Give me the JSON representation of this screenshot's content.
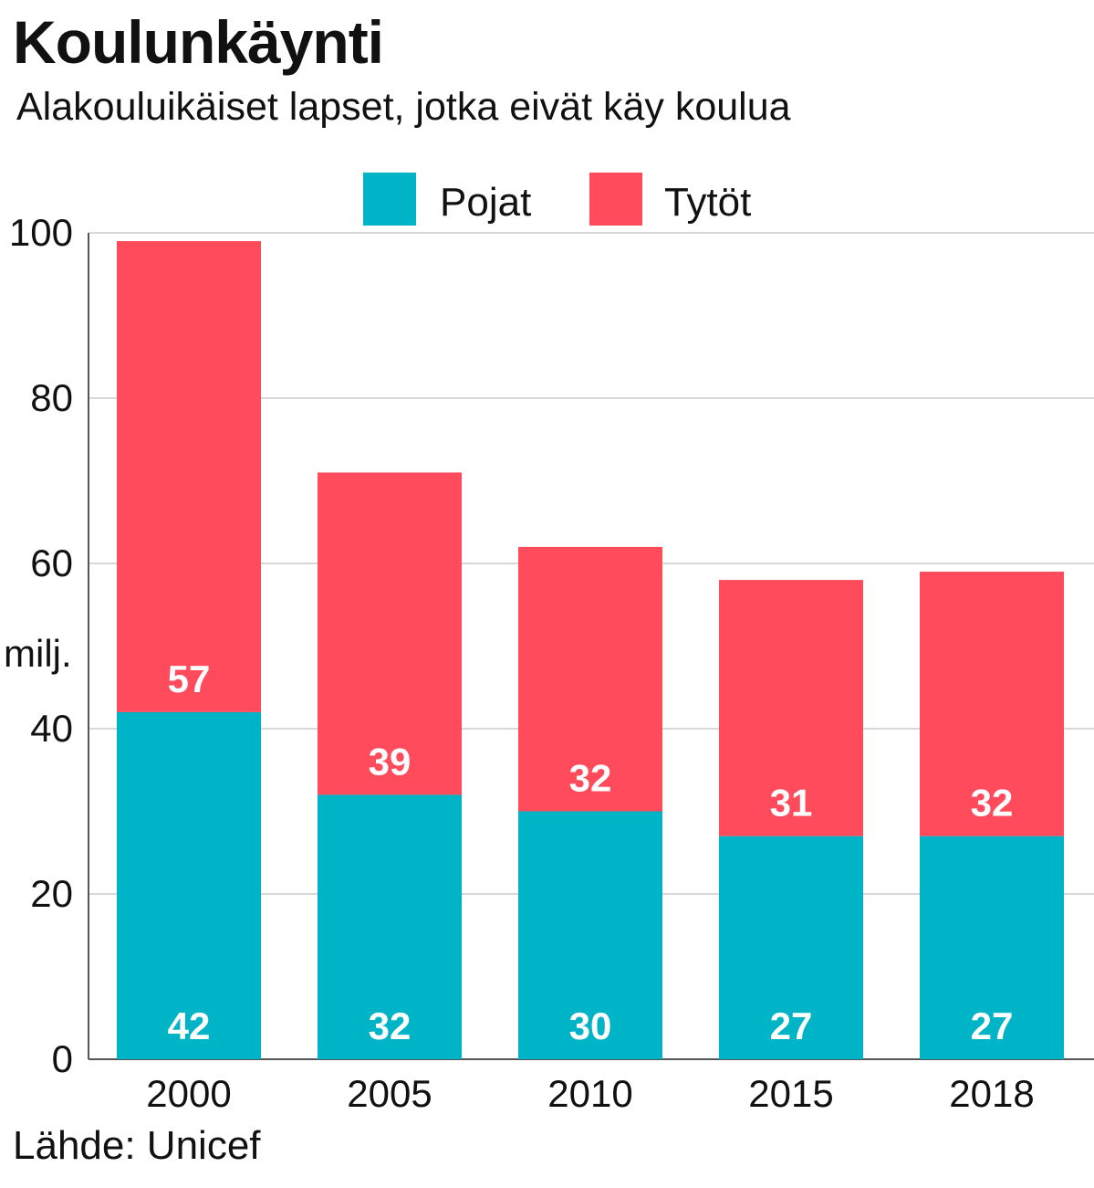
{
  "header": {
    "title": "Koulunkäynti",
    "subtitle": "Alakouluikäiset lapset, jotka eivät käy koulua"
  },
  "footer": {
    "source": "Lähde: Unicef"
  },
  "colors": {
    "boys": "#00b4c8",
    "girls": "#ff4b5c",
    "grid": "#cccccc",
    "axis": "#555555"
  },
  "chart_data": {
    "type": "bar",
    "stacked": true,
    "title": "Koulunkäynti",
    "subtitle": "Alakouluikäiset lapset, jotka eivät käy koulua",
    "categories": [
      "2000",
      "2005",
      "2010",
      "2015",
      "2018"
    ],
    "series": [
      {
        "name": "Pojat",
        "values": [
          42,
          32,
          30,
          27,
          27
        ],
        "color": "#00b4c8"
      },
      {
        "name": "Tytöt",
        "values": [
          57,
          39,
          32,
          31,
          32
        ],
        "color": "#ff4b5c"
      }
    ],
    "ylabel": "milj.",
    "xlabel": "",
    "ylim": [
      0,
      100
    ],
    "yticks": [
      "0",
      "20",
      "40",
      "60",
      "80",
      "100"
    ],
    "grid": true,
    "legend": "top-center"
  }
}
